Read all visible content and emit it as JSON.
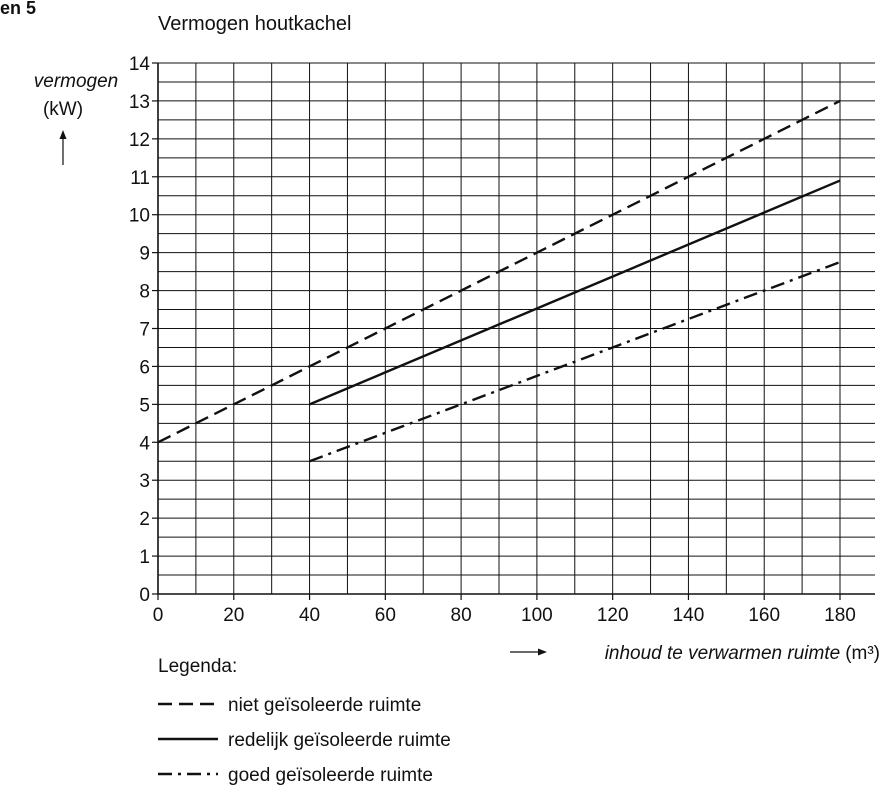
{
  "fig_label": "en 5",
  "chart_data": {
    "type": "line",
    "title": "Vermogen houtkachel",
    "ylabel_main": "vermogen",
    "ylabel_unit": "(kW)",
    "xlabel_main": "inhoud te verwarmen ruimte",
    "xlabel_unit": "(m³)",
    "xlim": [
      0,
      180
    ],
    "ylim": [
      0,
      14
    ],
    "x_ticks": [
      0,
      20,
      40,
      60,
      80,
      100,
      120,
      140,
      160,
      180
    ],
    "y_ticks": [
      0,
      1,
      2,
      3,
      4,
      5,
      6,
      7,
      8,
      9,
      10,
      11,
      12,
      13,
      14
    ],
    "x_minor_step": 10,
    "y_minor_step": 0.5,
    "grid": true,
    "legend_title": "Legenda:",
    "series": [
      {
        "name": "niet geïsoleerde ruimte",
        "dash": "dashed",
        "points": [
          [
            0,
            4
          ],
          [
            180,
            13
          ]
        ]
      },
      {
        "name": "redelijk geïsoleerde ruimte",
        "dash": "solid",
        "points": [
          [
            40,
            5
          ],
          [
            180,
            10.9
          ]
        ]
      },
      {
        "name": "goed geïsoleerde ruimte",
        "dash": "dashdot",
        "points": [
          [
            40,
            3.5
          ],
          [
            180,
            8.75
          ]
        ]
      }
    ]
  }
}
